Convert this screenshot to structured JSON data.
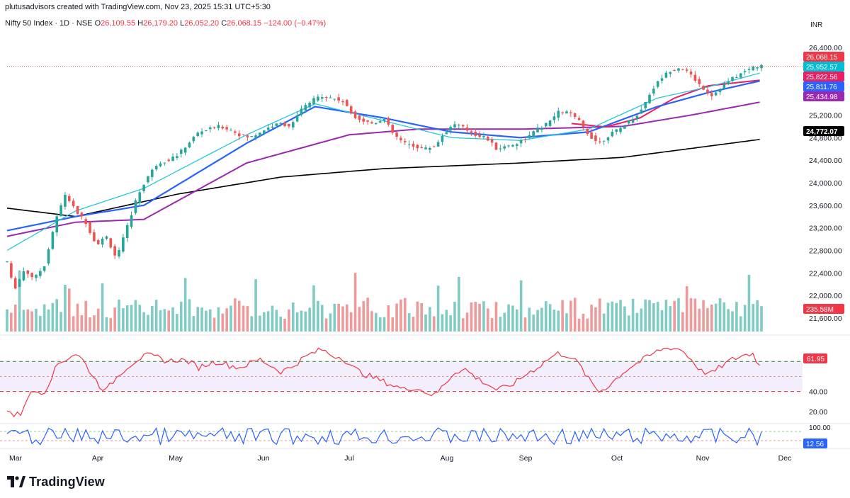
{
  "header": {
    "attribution": "plutusadvisors created with TradingView.com, Nov 23, 2025 15:31 UTC+5:30"
  },
  "symbol": {
    "name": "Nifty 50 Index · 1D · NSE",
    "open_label": "O",
    "open": "26,109.55",
    "high_label": "H",
    "high": "26,179.20",
    "low_label": "L",
    "low": "26,052.20",
    "close_label": "C",
    "close": "26,068.15",
    "change": "−124.00 (−0.47%)"
  },
  "branding": {
    "logo_text": "TradingView"
  },
  "colors": {
    "up": "#26a69a",
    "down": "#ef5350",
    "ma_fast": "#26c6da",
    "ma_mid": "#2962ff",
    "ma_red": "#e91e63",
    "ma_purple": "#9c27b0",
    "ma_long": "#000000",
    "rsi": "#f23645",
    "osc": "#2962ff"
  },
  "chart_data": {
    "type": "candlestick",
    "currency": "INR",
    "price_axis": {
      "ticks": [
        "26,400.00",
        "26,000.00",
        "25,600.00",
        "25,200.00",
        "24,800.00",
        "24,400.00",
        "24,000.00",
        "23,600.00",
        "23,200.00",
        "22,800.00",
        "22,400.00",
        "22,000.00",
        "21,600.00"
      ],
      "range": [
        21700,
        26650
      ]
    },
    "time_axis": [
      "Mar",
      "Apr",
      "May",
      "Jun",
      "Jul",
      "Aug",
      "Sep",
      "Oct",
      "Nov",
      "Dec"
    ],
    "price_path": [
      [
        0,
        22600
      ],
      [
        4,
        22100
      ],
      [
        10,
        22450
      ],
      [
        16,
        22300
      ],
      [
        22,
        22550
      ],
      [
        28,
        23300
      ],
      [
        34,
        23800
      ],
      [
        40,
        23500
      ],
      [
        46,
        23300
      ],
      [
        52,
        22900
      ],
      [
        58,
        23050
      ],
      [
        64,
        22650
      ],
      [
        70,
        23200
      ],
      [
        76,
        23750
      ],
      [
        82,
        24100
      ],
      [
        88,
        24350
      ],
      [
        94,
        24400
      ],
      [
        100,
        24500
      ],
      [
        106,
        24700
      ],
      [
        112,
        24900
      ],
      [
        118,
        24950
      ],
      [
        124,
        25000
      ],
      [
        130,
        24950
      ],
      [
        136,
        24850
      ],
      [
        142,
        24800
      ],
      [
        148,
        24900
      ],
      [
        154,
        25000
      ],
      [
        160,
        25050
      ],
      [
        166,
        25000
      ],
      [
        172,
        25300
      ],
      [
        178,
        25450
      ],
      [
        184,
        25550
      ],
      [
        190,
        25500
      ],
      [
        196,
        25450
      ],
      [
        202,
        25200
      ],
      [
        208,
        25100
      ],
      [
        214,
        25050
      ],
      [
        220,
        25150
      ],
      [
        226,
        24850
      ],
      [
        232,
        24700
      ],
      [
        238,
        24650
      ],
      [
        244,
        24600
      ],
      [
        250,
        24650
      ],
      [
        256,
        24900
      ],
      [
        262,
        25050
      ],
      [
        268,
        24950
      ],
      [
        274,
        24850
      ],
      [
        280,
        24800
      ],
      [
        286,
        24600
      ],
      [
        292,
        24650
      ],
      [
        298,
        24700
      ],
      [
        304,
        24800
      ],
      [
        310,
        24950
      ],
      [
        316,
        25050
      ],
      [
        322,
        25250
      ],
      [
        328,
        25250
      ],
      [
        334,
        25100
      ],
      [
        340,
        24850
      ],
      [
        346,
        24700
      ],
      [
        352,
        24850
      ],
      [
        358,
        24950
      ],
      [
        364,
        25100
      ],
      [
        370,
        25250
      ],
      [
        376,
        25600
      ],
      [
        382,
        25850
      ],
      [
        388,
        26000
      ],
      [
        394,
        26050
      ],
      [
        400,
        25900
      ],
      [
        406,
        25700
      ],
      [
        412,
        25550
      ],
      [
        418,
        25700
      ],
      [
        424,
        25850
      ],
      [
        430,
        25950
      ],
      [
        436,
        26050
      ],
      [
        441,
        26068
      ]
    ],
    "candles_count": 183,
    "labels_last": [
      {
        "text": "26,068.15",
        "color": "#f23645"
      },
      {
        "text": "25,952.57",
        "color": "#00bcd4"
      },
      {
        "text": "25,822.56",
        "color": "#e91e63"
      },
      {
        "text": "25,811.76",
        "color": "#2962ff"
      },
      {
        "text": "25,434.98",
        "color": "#9c27b0"
      },
      {
        "text": "24,772.07",
        "color": "#000000"
      }
    ],
    "ma_fast": [
      [
        0,
        22800
      ],
      [
        40,
        23500
      ],
      [
        80,
        23900
      ],
      [
        140,
        24850
      ],
      [
        180,
        25400
      ],
      [
        220,
        25100
      ],
      [
        260,
        24800
      ],
      [
        300,
        24750
      ],
      [
        340,
        24950
      ],
      [
        380,
        25500
      ],
      [
        410,
        25700
      ],
      [
        441,
        25952
      ]
    ],
    "ma_mid": [
      [
        0,
        23150
      ],
      [
        40,
        23400
      ],
      [
        80,
        23600
      ],
      [
        140,
        24700
      ],
      [
        180,
        25350
      ],
      [
        220,
        25150
      ],
      [
        260,
        24900
      ],
      [
        300,
        24800
      ],
      [
        340,
        24900
      ],
      [
        380,
        25350
      ],
      [
        410,
        25600
      ],
      [
        441,
        25812
      ]
    ],
    "ma_red": [
      [
        330,
        25050
      ],
      [
        350,
        24990
      ],
      [
        370,
        25150
      ],
      [
        390,
        25500
      ],
      [
        410,
        25720
      ],
      [
        441,
        25822
      ]
    ],
    "ma_purple": [
      [
        0,
        23050
      ],
      [
        40,
        23300
      ],
      [
        80,
        23350
      ],
      [
        140,
        24350
      ],
      [
        200,
        24850
      ],
      [
        240,
        24950
      ],
      [
        300,
        24950
      ],
      [
        360,
        25000
      ],
      [
        400,
        25200
      ],
      [
        441,
        25435
      ]
    ],
    "ma_long": [
      [
        0,
        23550
      ],
      [
        40,
        23400
      ],
      [
        100,
        23800
      ],
      [
        160,
        24100
      ],
      [
        220,
        24250
      ],
      [
        300,
        24350
      ],
      [
        360,
        24450
      ],
      [
        441,
        24772
      ]
    ],
    "volume": {
      "last_label": "235.58M"
    },
    "rsi": {
      "last_label": "61.95",
      "ticks": [
        "40.00",
        "20.00"
      ],
      "levels": [
        70,
        40
      ],
      "path": [
        [
          0,
          22
        ],
        [
          4,
          16
        ],
        [
          8,
          18
        ],
        [
          12,
          35
        ],
        [
          16,
          40
        ],
        [
          22,
          40
        ],
        [
          26,
          55
        ],
        [
          30,
          68
        ],
        [
          34,
          72
        ],
        [
          40,
          78
        ],
        [
          44,
          72
        ],
        [
          50,
          56
        ],
        [
          54,
          46
        ],
        [
          58,
          41
        ],
        [
          62,
          50
        ],
        [
          66,
          58
        ],
        [
          70,
          64
        ],
        [
          76,
          72
        ],
        [
          82,
          76
        ],
        [
          88,
          74
        ],
        [
          94,
          70
        ],
        [
          100,
          72
        ],
        [
          106,
          70
        ],
        [
          112,
          64
        ],
        [
          118,
          68
        ],
        [
          124,
          70
        ],
        [
          130,
          66
        ],
        [
          136,
          64
        ],
        [
          142,
          68
        ],
        [
          148,
          72
        ],
        [
          154,
          66
        ],
        [
          160,
          60
        ],
        [
          166,
          64
        ],
        [
          172,
          72
        ],
        [
          178,
          78
        ],
        [
          184,
          82
        ],
        [
          190,
          76
        ],
        [
          196,
          74
        ],
        [
          202,
          64
        ],
        [
          208,
          58
        ],
        [
          214,
          54
        ],
        [
          220,
          50
        ],
        [
          226,
          46
        ],
        [
          232,
          42
        ],
        [
          238,
          44
        ],
        [
          244,
          40
        ],
        [
          250,
          36
        ],
        [
          256,
          48
        ],
        [
          262,
          60
        ],
        [
          268,
          62
        ],
        [
          274,
          54
        ],
        [
          280,
          48
        ],
        [
          286,
          42
        ],
        [
          292,
          44
        ],
        [
          298,
          50
        ],
        [
          304,
          58
        ],
        [
          310,
          64
        ],
        [
          316,
          72
        ],
        [
          322,
          78
        ],
        [
          328,
          76
        ],
        [
          334,
          68
        ],
        [
          340,
          52
        ],
        [
          346,
          40
        ],
        [
          352,
          46
        ],
        [
          358,
          56
        ],
        [
          364,
          64
        ],
        [
          370,
          70
        ],
        [
          376,
          76
        ],
        [
          382,
          82
        ],
        [
          388,
          84
        ],
        [
          394,
          82
        ],
        [
          400,
          72
        ],
        [
          406,
          60
        ],
        [
          412,
          58
        ],
        [
          418,
          66
        ],
        [
          424,
          72
        ],
        [
          430,
          76
        ],
        [
          436,
          78
        ],
        [
          441,
          62
        ]
      ]
    },
    "oscillator": {
      "last_label": "12.56",
      "tick": "100.00"
    }
  }
}
